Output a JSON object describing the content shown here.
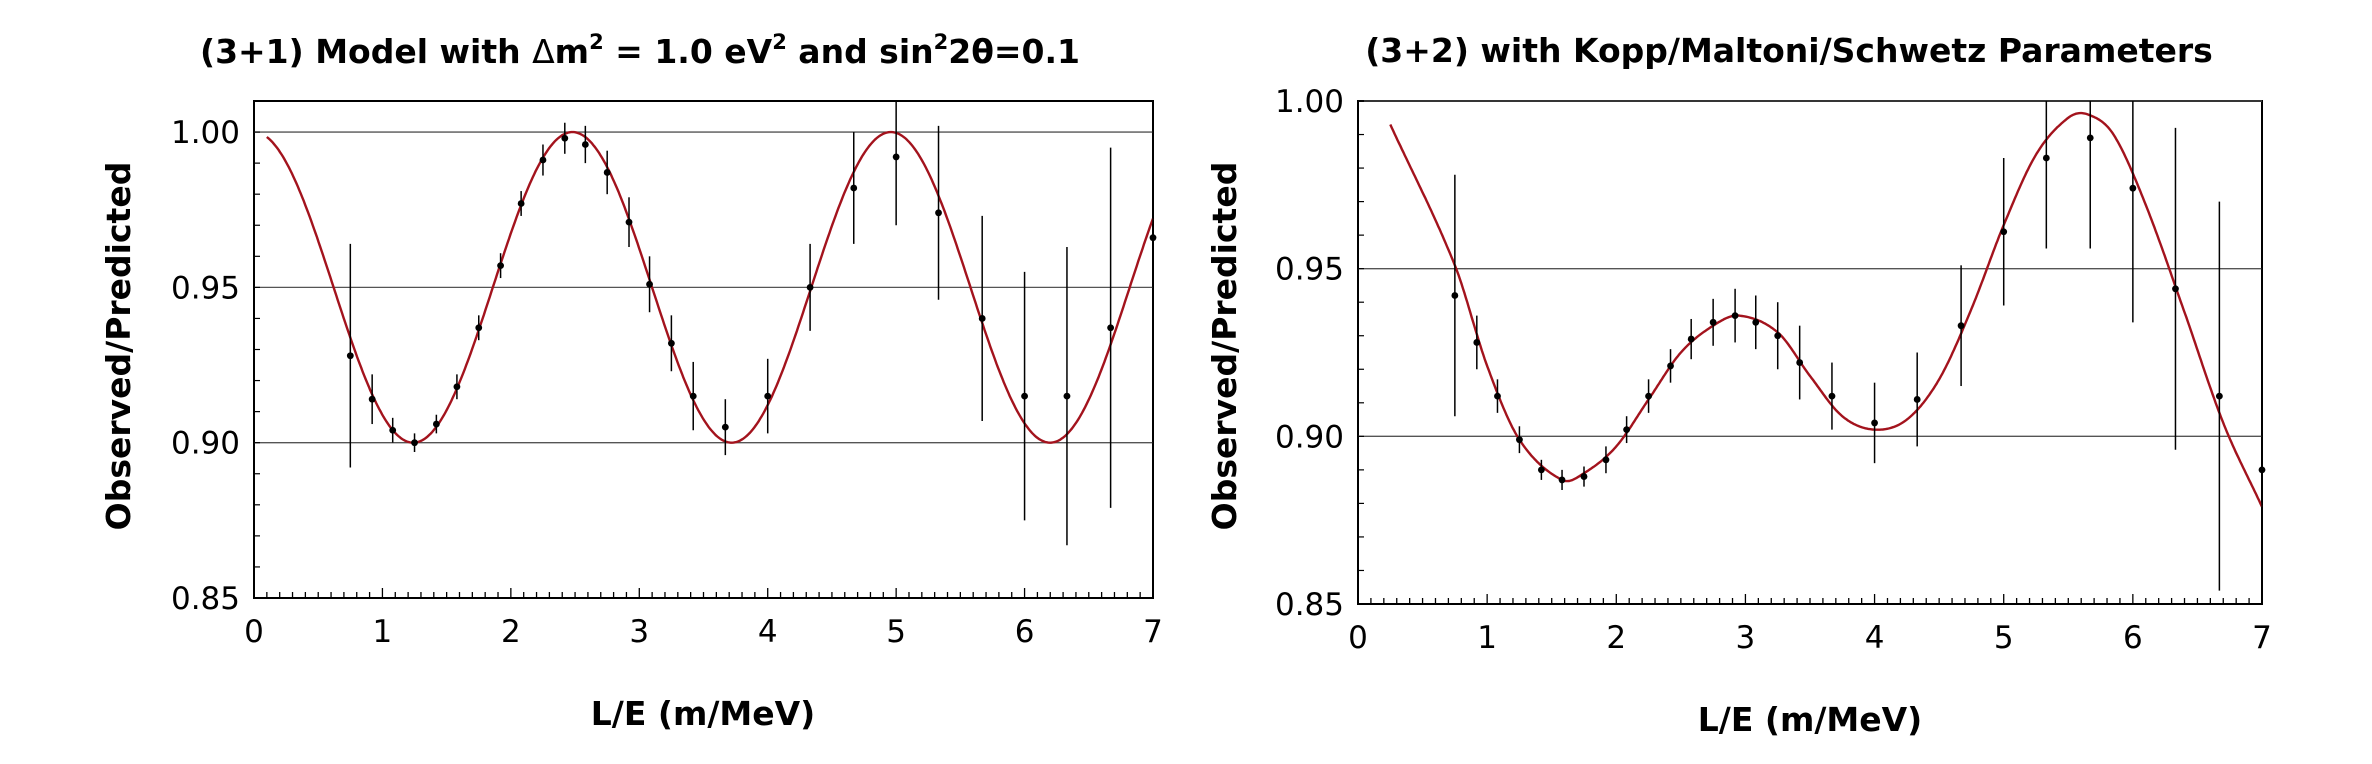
{
  "chart_data": [
    {
      "type": "line",
      "title": {
        "pre": "(3+1) Model with ",
        "delta": "Δ",
        "m": "m",
        "sup1": "2",
        "mid": " = 1.0 eV",
        "sup2": "2",
        "and": " and sin",
        "sup3": "2",
        "post": "2θ=0.1"
      },
      "xlabel": "L/E (m/MeV)",
      "ylabel": "Observed/Predicted",
      "xlim": [
        0,
        7
      ],
      "ylim": [
        0.85,
        1.01
      ],
      "grid": "horizontal",
      "xticks": [
        "0",
        "1",
        "2",
        "3",
        "4",
        "5",
        "6",
        "7"
      ],
      "yticks": [
        "0.85",
        "0.90",
        "0.95",
        "1.00"
      ],
      "yticks_values": [
        0.85,
        0.9,
        0.95,
        1.0
      ],
      "series": [
        {
          "kind": "data",
          "color": "#000000",
          "points": [
            {
              "x": 0.75,
              "y": 0.928,
              "err": 0.036
            },
            {
              "x": 0.92,
              "y": 0.914,
              "err": 0.008
            },
            {
              "x": 1.08,
              "y": 0.904,
              "err": 0.004
            },
            {
              "x": 1.25,
              "y": 0.9,
              "err": 0.003
            },
            {
              "x": 1.42,
              "y": 0.906,
              "err": 0.003
            },
            {
              "x": 1.58,
              "y": 0.918,
              "err": 0.004
            },
            {
              "x": 1.75,
              "y": 0.937,
              "err": 0.004
            },
            {
              "x": 1.92,
              "y": 0.957,
              "err": 0.004
            },
            {
              "x": 2.08,
              "y": 0.977,
              "err": 0.004
            },
            {
              "x": 2.25,
              "y": 0.991,
              "err": 0.005
            },
            {
              "x": 2.42,
              "y": 0.998,
              "err": 0.005
            },
            {
              "x": 2.58,
              "y": 0.996,
              "err": 0.006
            },
            {
              "x": 2.75,
              "y": 0.987,
              "err": 0.007
            },
            {
              "x": 2.92,
              "y": 0.971,
              "err": 0.008
            },
            {
              "x": 3.08,
              "y": 0.951,
              "err": 0.009
            },
            {
              "x": 3.25,
              "y": 0.932,
              "err": 0.009
            },
            {
              "x": 3.42,
              "y": 0.915,
              "err": 0.011
            },
            {
              "x": 3.67,
              "y": 0.905,
              "err": 0.009
            },
            {
              "x": 4.0,
              "y": 0.915,
              "err": 0.012
            },
            {
              "x": 4.33,
              "y": 0.95,
              "err": 0.014
            },
            {
              "x": 4.67,
              "y": 0.982,
              "err": 0.018
            },
            {
              "x": 5.0,
              "y": 0.992,
              "err": 0.022
            },
            {
              "x": 5.33,
              "y": 0.974,
              "err": 0.028
            },
            {
              "x": 5.67,
              "y": 0.94,
              "err": 0.033
            },
            {
              "x": 6.0,
              "y": 0.915,
              "err": 0.04
            },
            {
              "x": 6.33,
              "y": 0.915,
              "err": 0.048
            },
            {
              "x": 6.67,
              "y": 0.937,
              "err": 0.058
            },
            {
              "x": 7.0,
              "y": 0.966,
              "err": 0.07
            }
          ]
        },
        {
          "kind": "curve",
          "color": "#a3131d",
          "model": {
            "type": "sin2",
            "a": 0.1,
            "k": 1.267,
            "dm2": 1.0
          }
        }
      ]
    },
    {
      "type": "line",
      "title": {
        "text": "(3+2) with Kopp/Maltoni/Schwetz Parameters"
      },
      "xlabel": "L/E (m/MeV)",
      "ylabel": "Observed/Predicted",
      "xlim": [
        0,
        7
      ],
      "ylim": [
        0.85,
        1.0
      ],
      "grid": "horizontal",
      "xticks": [
        "0",
        "1",
        "2",
        "3",
        "4",
        "5",
        "6",
        "7"
      ],
      "yticks": [
        "0.85",
        "0.90",
        "0.95",
        "1.00"
      ],
      "yticks_values": [
        0.85,
        0.9,
        0.95,
        1.0
      ],
      "series": [
        {
          "kind": "data",
          "color": "#000000",
          "points": [
            {
              "x": 0.75,
              "y": 0.942,
              "err": 0.036
            },
            {
              "x": 0.92,
              "y": 0.928,
              "err": 0.008
            },
            {
              "x": 1.08,
              "y": 0.912,
              "err": 0.005
            },
            {
              "x": 1.25,
              "y": 0.899,
              "err": 0.004
            },
            {
              "x": 1.42,
              "y": 0.89,
              "err": 0.003
            },
            {
              "x": 1.58,
              "y": 0.887,
              "err": 0.003
            },
            {
              "x": 1.75,
              "y": 0.888,
              "err": 0.003
            },
            {
              "x": 1.92,
              "y": 0.893,
              "err": 0.004
            },
            {
              "x": 2.08,
              "y": 0.902,
              "err": 0.004
            },
            {
              "x": 2.25,
              "y": 0.912,
              "err": 0.005
            },
            {
              "x": 2.42,
              "y": 0.921,
              "err": 0.005
            },
            {
              "x": 2.58,
              "y": 0.929,
              "err": 0.006
            },
            {
              "x": 2.75,
              "y": 0.934,
              "err": 0.007
            },
            {
              "x": 2.92,
              "y": 0.936,
              "err": 0.008
            },
            {
              "x": 3.08,
              "y": 0.934,
              "err": 0.008
            },
            {
              "x": 3.25,
              "y": 0.93,
              "err": 0.01
            },
            {
              "x": 3.42,
              "y": 0.922,
              "err": 0.011
            },
            {
              "x": 3.67,
              "y": 0.912,
              "err": 0.01
            },
            {
              "x": 4.0,
              "y": 0.904,
              "err": 0.012
            },
            {
              "x": 4.33,
              "y": 0.911,
              "err": 0.014
            },
            {
              "x": 4.67,
              "y": 0.933,
              "err": 0.018
            },
            {
              "x": 5.0,
              "y": 0.961,
              "err": 0.022
            },
            {
              "x": 5.33,
              "y": 0.983,
              "err": 0.027
            },
            {
              "x": 5.67,
              "y": 0.989,
              "err": 0.033
            },
            {
              "x": 6.0,
              "y": 0.974,
              "err": 0.04
            },
            {
              "x": 6.33,
              "y": 0.944,
              "err": 0.048
            },
            {
              "x": 6.67,
              "y": 0.912,
              "err": 0.058
            },
            {
              "x": 7.0,
              "y": 0.89,
              "err": 0.07
            }
          ]
        },
        {
          "kind": "curve",
          "color": "#a3131d",
          "model": {
            "type": "spline",
            "x": [
              0.25,
              0.75,
              1.0,
              1.25,
              1.58,
              1.75,
              2.0,
              2.25,
              2.5,
              2.75,
              2.95,
              3.25,
              3.5,
              3.75,
              4.0,
              4.25,
              4.5,
              4.75,
              5.0,
              5.25,
              5.5,
              5.65,
              5.85,
              6.1,
              6.4,
              6.7,
              7.0
            ],
            "y": [
              0.993,
              0.951,
              0.921,
              0.899,
              0.887,
              0.889,
              0.897,
              0.911,
              0.925,
              0.933,
              0.936,
              0.931,
              0.918,
              0.906,
              0.902,
              0.905,
              0.917,
              0.938,
              0.963,
              0.984,
              0.995,
              0.996,
              0.99,
              0.969,
              0.937,
              0.904,
              0.879
            ]
          }
        }
      ]
    }
  ]
}
